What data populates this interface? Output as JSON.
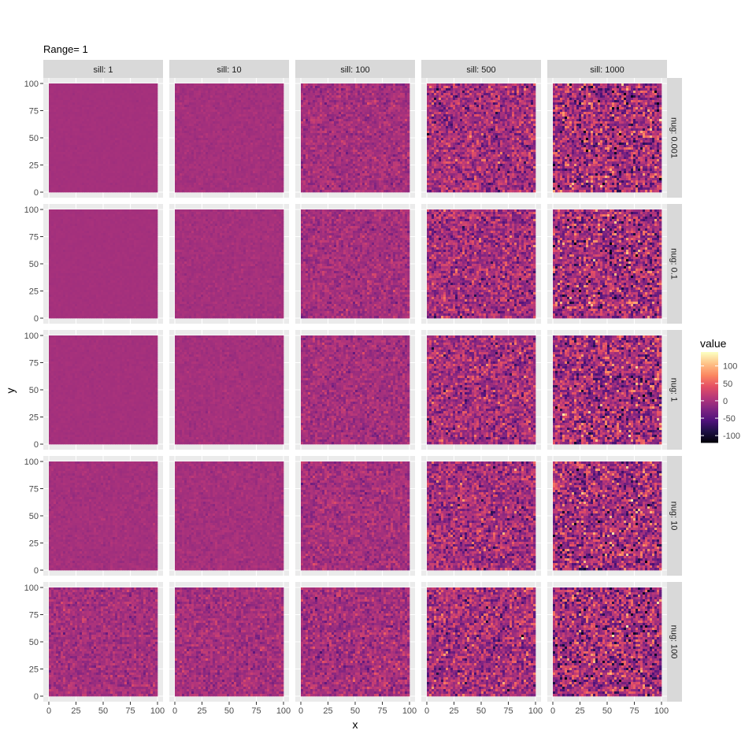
{
  "chart_data": {
    "type": "heatmap",
    "title": "Range=  1",
    "xlabel": "x",
    "ylabel": "y",
    "xlim": [
      0,
      100
    ],
    "ylim": [
      0,
      100
    ],
    "x_ticks": [
      "0",
      "25",
      "50",
      "75",
      "100"
    ],
    "y_ticks": [
      "0",
      "25",
      "50",
      "75",
      "100"
    ],
    "grid": true,
    "facet_columns": [
      {
        "label": "sill: 1",
        "sill": 1
      },
      {
        "label": "sill: 10",
        "sill": 10
      },
      {
        "label": "sill: 100",
        "sill": 100
      },
      {
        "label": "sill: 500",
        "sill": 500
      },
      {
        "label": "sill: 1000",
        "sill": 1000
      }
    ],
    "facet_rows": [
      {
        "label": "nug: 0.001",
        "nug": 0.001
      },
      {
        "label": "nug: 0.1",
        "nug": 0.1
      },
      {
        "label": "nug: 1",
        "nug": 1
      },
      {
        "label": "nug: 10",
        "nug": 10
      },
      {
        "label": "nug: 100",
        "nug": 100
      }
    ],
    "colorscale": "magma",
    "value_range": [
      -120,
      140
    ],
    "legend": {
      "title": "value",
      "position": "right",
      "ticks": [
        "100",
        "50",
        "0",
        "-50",
        "-100"
      ],
      "tick_values": [
        100,
        50,
        0,
        -50,
        -100
      ]
    }
  }
}
